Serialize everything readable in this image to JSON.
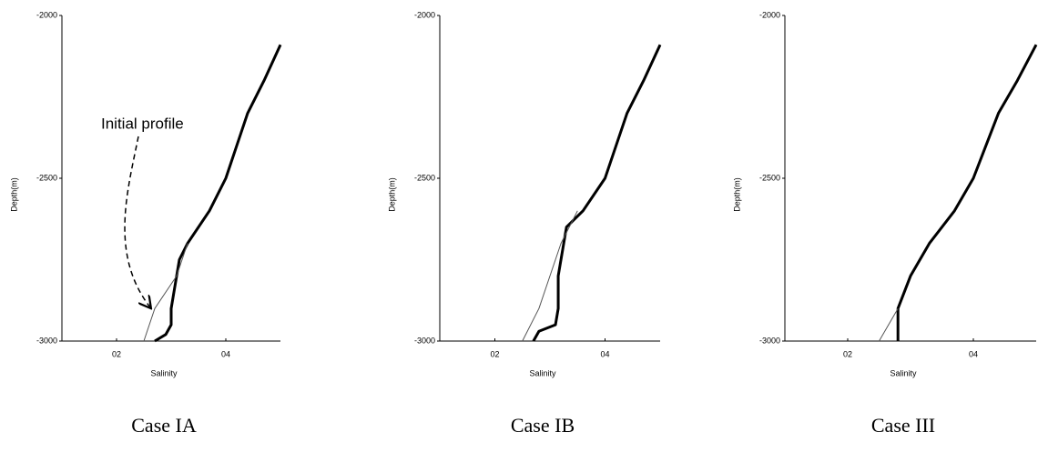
{
  "chart_data": [
    {
      "type": "line",
      "xlabel": "Salinity",
      "ylabel": "Depth(m)",
      "caption": "Case IA",
      "annotation": "Initial profile",
      "xlim": [
        0.1,
        0.5
      ],
      "xticks": [
        {
          "value": 0.2,
          "label": "02"
        },
        {
          "value": 0.4,
          "label": "04"
        }
      ],
      "ylim": [
        -3000,
        -2000
      ],
      "yticks": [
        -2000,
        -2500,
        -3000
      ],
      "series": [
        {
          "color": "#000000",
          "x": [
            0.27,
            0.29,
            0.3,
            0.3,
            0.31,
            0.315,
            0.33,
            0.37,
            0.4,
            0.42,
            0.44,
            0.47,
            0.5
          ],
          "values": [
            -3000,
            -2980,
            -2950,
            -2900,
            -2800,
            -2750,
            -2700,
            -2600,
            -2500,
            -2400,
            -2300,
            -2200,
            -2090
          ]
        },
        {
          "color": "#555555",
          "x": [
            0.25,
            0.27,
            0.31,
            0.33
          ],
          "values": [
            -3000,
            -2900,
            -2800,
            -2700
          ]
        }
      ]
    },
    {
      "type": "line",
      "xlabel": "Salinity",
      "ylabel": "Depth(m)",
      "caption": "Case IB",
      "xlim": [
        0.1,
        0.5
      ],
      "xticks": [
        {
          "value": 0.2,
          "label": "02"
        },
        {
          "value": 0.4,
          "label": "04"
        }
      ],
      "ylim": [
        -3000,
        -2000
      ],
      "yticks": [
        -2000,
        -2500,
        -3000
      ],
      "series": [
        {
          "color": "#000000",
          "x": [
            0.27,
            0.28,
            0.31,
            0.315,
            0.315,
            0.325,
            0.33,
            0.36,
            0.4,
            0.42,
            0.44,
            0.47,
            0.5
          ],
          "values": [
            -3000,
            -2970,
            -2950,
            -2900,
            -2800,
            -2700,
            -2650,
            -2600,
            -2500,
            -2400,
            -2300,
            -2200,
            -2090
          ]
        },
        {
          "color": "#555555",
          "x": [
            0.25,
            0.28,
            0.3,
            0.32,
            0.35
          ],
          "values": [
            -3000,
            -2900,
            -2800,
            -2700,
            -2600
          ]
        }
      ]
    },
    {
      "type": "line",
      "xlabel": "Salinity",
      "ylabel": "Depth(m)",
      "caption": "Case III",
      "xlim": [
        0.1,
        0.5
      ],
      "xticks": [
        {
          "value": 0.2,
          "label": "02"
        },
        {
          "value": 0.4,
          "label": "04"
        }
      ],
      "ylim": [
        -3000,
        -2000
      ],
      "yticks": [
        -2000,
        -2500,
        -3000
      ],
      "series": [
        {
          "color": "#000000",
          "x": [
            0.28,
            0.28,
            0.3,
            0.33,
            0.37,
            0.4,
            0.42,
            0.44,
            0.47,
            0.5
          ],
          "values": [
            -3000,
            -2900,
            -2800,
            -2700,
            -2600,
            -2500,
            -2400,
            -2300,
            -2200,
            -2090
          ]
        },
        {
          "color": "#555555",
          "x": [
            0.25,
            0.28
          ],
          "values": [
            -3000,
            -2900
          ]
        }
      ]
    }
  ]
}
